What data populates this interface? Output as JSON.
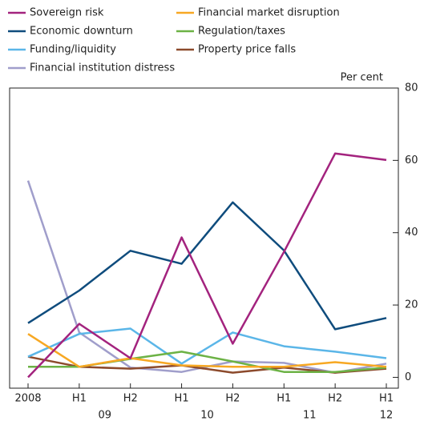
{
  "chart_data": {
    "type": "line",
    "y_axis_label": "Per cent",
    "categories": [
      "2008",
      "H1",
      "H2",
      "H1",
      "H2",
      "H1",
      "H2",
      "H1"
    ],
    "years": [
      "09",
      "10",
      "11",
      "12"
    ],
    "ylim": [
      -3,
      80
    ],
    "yticks": [
      0,
      20,
      40,
      60,
      80
    ],
    "series": [
      {
        "name": "Sovereign risk",
        "color": "#a3237e",
        "values": [
          0,
          14.8,
          5.3,
          38.7,
          9.3,
          34.7,
          61.9,
          60.1
        ]
      },
      {
        "name": "Financial market disruption",
        "color": "#f7a823",
        "values": [
          12,
          2.9,
          5.3,
          3.3,
          2.9,
          2.9,
          4.2,
          2.9
        ]
      },
      {
        "name": "Economic downturn",
        "color": "#0f4c7d",
        "values": [
          15,
          24,
          35,
          31.4,
          48.4,
          35.1,
          13.3,
          16.4
        ]
      },
      {
        "name": "Regulation/taxes",
        "color": "#6cb245",
        "values": [
          2.9,
          2.9,
          5.1,
          7.1,
          4.4,
          1.5,
          1.5,
          2.7
        ]
      },
      {
        "name": "Funding/liquidity",
        "color": "#5bb6e8",
        "values": [
          5.7,
          12,
          13.5,
          3.8,
          12.4,
          8.6,
          7.1,
          5.3
        ]
      },
      {
        "name": "Property price falls",
        "color": "#8c4a2c",
        "values": [
          5.7,
          2.9,
          2.4,
          3.3,
          1.3,
          2.7,
          1.3,
          2.4
        ]
      },
      {
        "name": "Financial institution distress",
        "color": "#a09ecb",
        "values": [
          54.4,
          12.4,
          2.7,
          1.5,
          4.4,
          4,
          1.3,
          3.8
        ]
      }
    ]
  }
}
